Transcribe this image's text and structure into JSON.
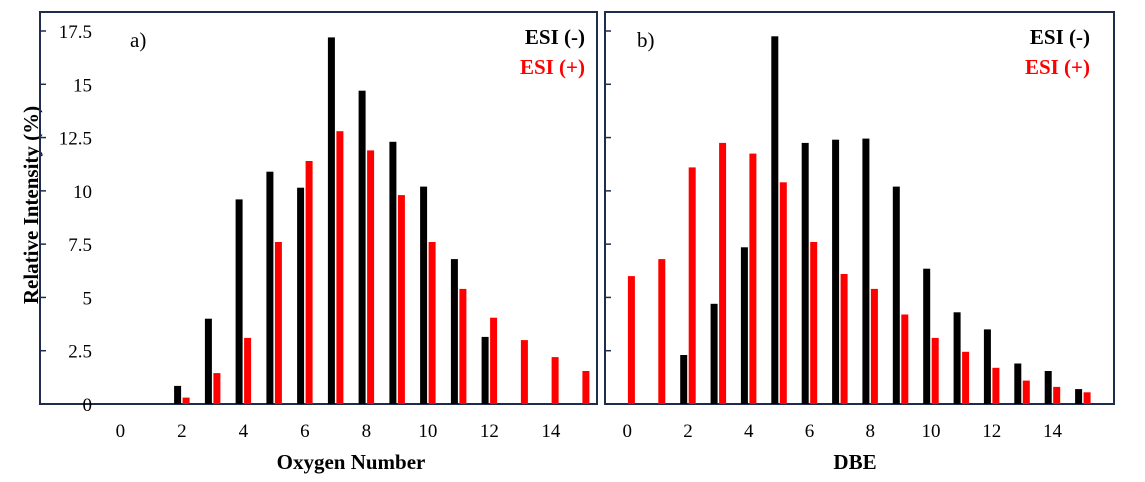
{
  "ylabel": "Relative Intensity (%)",
  "colors": {
    "esi_neg": "#000000",
    "esi_pos": "#ff0000",
    "frame": "#1f2d4d"
  },
  "chart_data": [
    {
      "type": "bar",
      "panel_label": "a)",
      "xlabel": "Oxygen Number",
      "ylabel": "Relative Intensity (%)",
      "x": [
        0,
        1,
        2,
        3,
        4,
        5,
        6,
        7,
        8,
        9,
        10,
        11,
        12,
        13,
        14,
        15
      ],
      "xticks": [
        "0",
        "2",
        "4",
        "6",
        "8",
        "10",
        "12",
        "14"
      ],
      "xtick_values": [
        0,
        2,
        4,
        6,
        8,
        10,
        12,
        14
      ],
      "yticks": [
        "0",
        "2.5",
        "5",
        "7.5",
        "10",
        "12.5",
        "15",
        "17.5"
      ],
      "ytick_values": [
        0,
        2.5,
        5,
        7.5,
        10,
        12.5,
        15,
        17.5
      ],
      "xlim": [
        -0.5,
        15.5
      ],
      "ylim": [
        0,
        17.5
      ],
      "legend_position": "top-right",
      "series": [
        {
          "name": "ESI (-)",
          "color": "#000000",
          "values": [
            0,
            0,
            0.85,
            4.0,
            9.6,
            10.9,
            10.15,
            17.2,
            14.7,
            12.3,
            10.2,
            6.8,
            3.15,
            0,
            0,
            0
          ]
        },
        {
          "name": "ESI (+)",
          "color": "#ff0000",
          "values": [
            0,
            0,
            0.3,
            1.45,
            3.1,
            7.6,
            11.4,
            12.8,
            11.9,
            9.8,
            7.6,
            5.4,
            4.05,
            3.0,
            2.2,
            1.55
          ]
        }
      ]
    },
    {
      "type": "bar",
      "panel_label": "b)",
      "xlabel": "DBE",
      "ylabel": "",
      "x": [
        0,
        1,
        2,
        3,
        4,
        5,
        6,
        7,
        8,
        9,
        10,
        11,
        12,
        13,
        14,
        15
      ],
      "xticks": [
        "0",
        "2",
        "4",
        "6",
        "8",
        "10",
        "12",
        "14"
      ],
      "xtick_values": [
        0,
        2,
        4,
        6,
        8,
        10,
        12,
        14
      ],
      "yticks": [],
      "ytick_values": [
        0,
        2.5,
        5,
        7.5,
        10,
        12.5,
        15,
        17.5
      ],
      "xlim": [
        -0.5,
        15.5
      ],
      "ylim": [
        0,
        17.5
      ],
      "legend_position": "top-right",
      "series": [
        {
          "name": "ESI (-)",
          "color": "#000000",
          "values": [
            0,
            0,
            2.3,
            4.7,
            7.35,
            17.25,
            12.25,
            12.4,
            12.45,
            10.2,
            6.35,
            4.3,
            3.5,
            1.9,
            1.55,
            0.7
          ]
        },
        {
          "name": "ESI (+)",
          "color": "#ff0000",
          "values": [
            6.0,
            6.8,
            11.1,
            12.25,
            11.75,
            10.4,
            7.6,
            6.1,
            5.4,
            4.2,
            3.1,
            2.45,
            1.7,
            1.1,
            0.8,
            0.55
          ]
        }
      ]
    }
  ]
}
